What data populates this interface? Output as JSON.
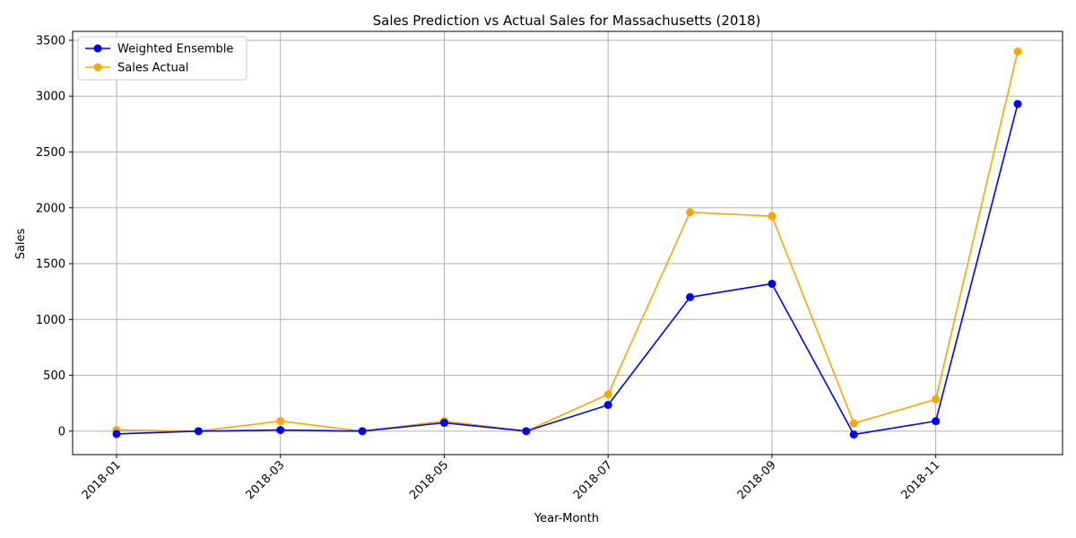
{
  "chart_data": {
    "type": "line",
    "title": "Sales Prediction vs Actual Sales for Massachusetts (2018)",
    "xlabel": "Year-Month",
    "ylabel": "Sales",
    "x": [
      "2018-01",
      "2018-02",
      "2018-03",
      "2018-04",
      "2018-05",
      "2018-06",
      "2018-07",
      "2018-08",
      "2018-09",
      "2018-10",
      "2018-11",
      "2018-12"
    ],
    "x_tick_labels": [
      "2018-01",
      "2018-03",
      "2018-05",
      "2018-07",
      "2018-09",
      "2018-11"
    ],
    "y_ticks": [
      0,
      500,
      1000,
      1500,
      2000,
      2500,
      3000,
      3500
    ],
    "ylim": [
      -210,
      3580
    ],
    "grid": true,
    "legend_position": "top-left",
    "series": [
      {
        "name": "Weighted Ensemble",
        "color": "#0000ff",
        "marker": "circle",
        "values": [
          -25,
          0,
          10,
          0,
          75,
          0,
          235,
          1200,
          1320,
          -30,
          90,
          2930
        ]
      },
      {
        "name": "Sales Actual",
        "color": "#ffa500",
        "marker": "circle",
        "values": [
          10,
          0,
          90,
          0,
          90,
          0,
          330,
          1960,
          1925,
          70,
          285,
          3400
        ]
      }
    ]
  }
}
